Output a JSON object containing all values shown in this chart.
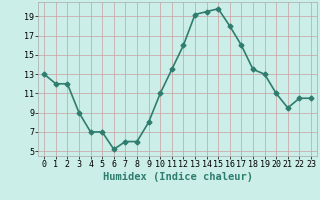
{
  "x": [
    0,
    1,
    2,
    3,
    4,
    5,
    6,
    7,
    8,
    9,
    10,
    11,
    12,
    13,
    14,
    15,
    16,
    17,
    18,
    19,
    20,
    21,
    22,
    23
  ],
  "y": [
    13,
    12,
    12,
    9,
    7,
    7,
    5.2,
    6,
    6,
    8,
    11,
    13.5,
    16,
    19.2,
    19.5,
    19.8,
    18,
    16,
    13.5,
    13,
    11,
    9.5,
    10.5,
    10.5
  ],
  "line_color": "#2e7d6e",
  "marker": "D",
  "marker_size": 2.5,
  "background_color": "#cceee8",
  "grid_color_major": "#c8a0a0",
  "grid_color_minor": "#ddc8c8",
  "xlabel": "Humidex (Indice chaleur)",
  "xlabel_fontsize": 7.5,
  "yticks": [
    5,
    7,
    9,
    11,
    13,
    15,
    17,
    19
  ],
  "xticks": [
    0,
    1,
    2,
    3,
    4,
    5,
    6,
    7,
    8,
    9,
    10,
    11,
    12,
    13,
    14,
    15,
    16,
    17,
    18,
    19,
    20,
    21,
    22,
    23
  ],
  "ylim": [
    4.5,
    20.5
  ],
  "xlim": [
    -0.5,
    23.5
  ],
  "tick_fontsize": 6,
  "linewidth": 1.2
}
